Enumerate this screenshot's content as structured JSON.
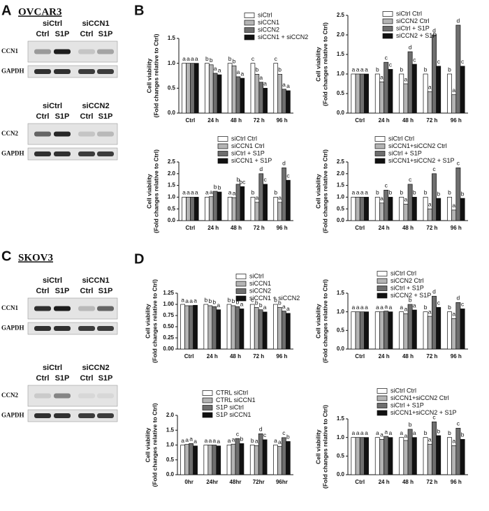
{
  "panel_labels": [
    "A",
    "B",
    "C",
    "D"
  ],
  "cell_lines": [
    "OVCAR3",
    "SKOV3"
  ],
  "blots": [
    {
      "groups": [
        "siCtrl",
        "siCCN1"
      ],
      "lanes": [
        "Ctrl",
        "S1P",
        "Ctrl",
        "S1P"
      ],
      "rows": [
        "CCN1",
        "GAPDH"
      ]
    },
    {
      "groups": [
        "siCtrl",
        "siCCN2"
      ],
      "lanes": [
        "Ctrl",
        "S1P",
        "Ctrl",
        "S1P"
      ],
      "rows": [
        "CCN2",
        "GAPDH"
      ]
    },
    {
      "groups": [
        "siCtrl",
        "siCCN1"
      ],
      "lanes": [
        "Ctrl",
        "S1P",
        "Ctrl",
        "S1P"
      ],
      "rows": [
        "CCN1",
        "GAPDH"
      ]
    },
    {
      "groups": [
        "siCtrl",
        "siCCN2"
      ],
      "lanes": [
        "Ctrl",
        "S1P",
        "Ctrl",
        "S1P"
      ],
      "rows": [
        "CCN2",
        "GAPDH"
      ]
    }
  ],
  "chart_data": [
    {
      "type": "bar",
      "ylabel": [
        "Cell viability",
        "(Fold changes relative to Ctrl)"
      ],
      "categories": [
        "Ctrl",
        "24 h",
        "48 h",
        "72 h",
        "96 h"
      ],
      "ylim": [
        0,
        1.5
      ],
      "yticks": [
        {
          "value": 0,
          "label": "0.0"
        },
        0.5,
        {
          "value": 1,
          "label": "1.0"
        },
        1.5
      ],
      "series": [
        {
          "name": "siCtrl",
          "color": "#ffffff",
          "values": [
            1,
            1,
            1,
            1,
            1
          ],
          "letters": [
            "a",
            "b",
            "b",
            "c",
            "c"
          ]
        },
        {
          "name": "siCCN1",
          "color": "#b4b4b4",
          "values": [
            1,
            0.97,
            0.95,
            0.78,
            0.78
          ],
          "letters": [
            "a",
            "b",
            "b",
            "b",
            "b"
          ]
        },
        {
          "name": "siCCN2",
          "color": "#6e6e6e",
          "values": [
            1,
            0.8,
            0.73,
            0.62,
            0.48
          ],
          "letters": [
            "a",
            "a",
            "a",
            "a",
            "a"
          ]
        },
        {
          "name": "siCCN1 + siCCN2",
          "color": "#111111",
          "values": [
            1,
            0.77,
            0.7,
            0.5,
            0.45
          ],
          "letters": [
            "a",
            "a",
            "a",
            "a",
            "a"
          ]
        }
      ]
    },
    {
      "type": "bar",
      "ylabel": [
        "Cell viability",
        "(Fold changes relative to Ctrl)"
      ],
      "categories": [
        "Ctrl",
        "24 h",
        "48 h",
        "72 h",
        "96 h"
      ],
      "ylim": [
        0,
        2.5
      ],
      "yticks": [
        {
          "value": 0,
          "label": "0.0"
        },
        0.5,
        {
          "value": 1,
          "label": "1.0"
        },
        1.5,
        {
          "value": 2,
          "label": "2.0"
        },
        2.5
      ],
      "series": [
        {
          "name": "siCtrl Ctrl",
          "color": "#ffffff",
          "values": [
            1,
            1,
            1,
            1,
            1
          ],
          "letters": [
            "a",
            "b",
            "b",
            "b",
            "b"
          ]
        },
        {
          "name": "siCCN2 Ctrl",
          "color": "#b4b4b4",
          "values": [
            1,
            0.8,
            0.75,
            0.55,
            0.47
          ],
          "letters": [
            "a",
            "a",
            "a",
            "a",
            "a"
          ]
        },
        {
          "name": "siCtrl + S1P",
          "color": "#6e6e6e",
          "values": [
            1,
            1.3,
            1.57,
            2.0,
            2.25
          ],
          "letters": [
            "a",
            "c",
            "d",
            "d",
            "d"
          ]
        },
        {
          "name": "siCCN2 + S1P",
          "color": "#111111",
          "values": [
            1,
            1.12,
            1.25,
            1.2,
            1.2
          ],
          "letters": [
            "a",
            "c",
            "c",
            "c",
            "c"
          ]
        }
      ]
    },
    {
      "type": "bar",
      "ylabel": [
        "Cell viability",
        "(Fold changes relative to Ctrl)"
      ],
      "categories": [
        "Ctrl",
        "24 h",
        "48 h",
        "72 h",
        "96 h"
      ],
      "ylim": [
        0,
        2.5
      ],
      "yticks": [
        {
          "value": 0,
          "label": "0.0"
        },
        0.5,
        {
          "value": 1,
          "label": "1.0"
        },
        1.5,
        {
          "value": 2,
          "label": "2.0"
        },
        2.5
      ],
      "series": [
        {
          "name": "siCtrl Ctrl",
          "color": "#ffffff",
          "values": [
            1,
            1,
            1,
            1,
            1
          ],
          "letters": [
            "a",
            "a",
            "a",
            "b",
            "b"
          ]
        },
        {
          "name": "siCCN1 Ctrl",
          "color": "#b4b4b4",
          "values": [
            1,
            1.02,
            0.98,
            0.78,
            0.78
          ],
          "letters": [
            "a",
            "a",
            "a",
            "a",
            "a"
          ]
        },
        {
          "name": "siCtrl + S1P",
          "color": "#6e6e6e",
          "values": [
            1,
            1.25,
            1.55,
            2.0,
            2.25
          ],
          "letters": [
            "a",
            "b",
            "b",
            "d",
            "d"
          ]
        },
        {
          "name": "siCCN1 + S1P",
          "color": "#111111",
          "values": [
            1,
            1.22,
            1.45,
            1.55,
            1.72
          ],
          "letters": [
            "a",
            "b",
            "bc",
            "c",
            "c"
          ]
        }
      ]
    },
    {
      "type": "bar",
      "ylabel": [
        "Cell viability",
        "(Fold changes relative to Ctrl)"
      ],
      "categories": [
        "Ctrl",
        "24 h",
        "48 h",
        "72 h",
        "96 h"
      ],
      "ylim": [
        0,
        2.5
      ],
      "yticks": [
        {
          "value": 0,
          "label": "0.0"
        },
        0.5,
        {
          "value": 1,
          "label": "1.0"
        },
        1.5,
        {
          "value": 2,
          "label": "2.0"
        },
        2.5
      ],
      "series": [
        {
          "name": "siCtrl Ctrl",
          "color": "#ffffff",
          "values": [
            1,
            1,
            1,
            1,
            1
          ],
          "letters": [
            "a",
            "b",
            "b",
            "b",
            "b"
          ]
        },
        {
          "name": "siCCN1+siCCN2 Ctrl",
          "color": "#b4b4b4",
          "values": [
            1,
            0.75,
            0.7,
            0.5,
            0.45
          ],
          "letters": [
            "a",
            "a",
            "a",
            "a",
            "a"
          ]
        },
        {
          "name": "siCtrl + S1P",
          "color": "#6e6e6e",
          "values": [
            1,
            1.3,
            1.55,
            2.0,
            2.25
          ],
          "letters": [
            "a",
            "c",
            "c",
            "c",
            "c"
          ]
        },
        {
          "name": "siCCN1+siCCN2 + S1P",
          "color": "#111111",
          "values": [
            1,
            1,
            1,
            0.95,
            0.95
          ],
          "letters": [
            "a",
            "b",
            "b",
            "b",
            "b"
          ]
        }
      ]
    },
    {
      "type": "bar",
      "ylabel": [
        "Cell viability",
        "(Fold changes relative to Ctrl)"
      ],
      "categories": [
        "Ctrl",
        "24 h",
        "48 h",
        "72 h",
        "96 h"
      ],
      "ylim": [
        0,
        1.25
      ],
      "yticks": [
        {
          "value": 0,
          "label": "0.00"
        },
        0.25,
        {
          "value": 0.5,
          "label": "0.50"
        },
        0.75,
        {
          "value": 1,
          "label": "1.00"
        },
        1.25
      ],
      "series": [
        {
          "name": "siCtrl",
          "color": "#ffffff",
          "values": [
            1,
            1,
            1,
            1,
            1
          ],
          "letters": [
            "a",
            "b",
            "b",
            "c",
            "b"
          ]
        },
        {
          "name": "siCCN1",
          "color": "#b4b4b4",
          "values": [
            0.97,
            0.97,
            0.97,
            0.93,
            0.93
          ],
          "letters": [
            "a",
            "b",
            "b",
            "b",
            "b"
          ]
        },
        {
          "name": "siCCN2",
          "color": "#6e6e6e",
          "values": [
            0.97,
            0.95,
            0.95,
            0.88,
            0.85
          ],
          "letters": [
            "a",
            "b",
            "b",
            "b",
            "a"
          ]
        },
        {
          "name": "siCCN1 + siCCN2",
          "color": "#111111",
          "values": [
            0.98,
            0.88,
            0.9,
            0.83,
            0.8
          ],
          "letters": [
            "a",
            "a",
            "a",
            "a",
            "a"
          ]
        }
      ]
    },
    {
      "type": "bar",
      "ylabel": [
        "Cell viability",
        "(Fold changes relative to Ctrl)"
      ],
      "categories": [
        "Ctrl",
        "24 h",
        "48 h",
        "72 h",
        "96 h"
      ],
      "ylim": [
        0,
        1.5
      ],
      "yticks": [
        {
          "value": 0,
          "label": "0.0"
        },
        0.5,
        {
          "value": 1,
          "label": "1.0"
        },
        1.5
      ],
      "series": [
        {
          "name": "siCtrl Ctrl",
          "color": "#ffffff",
          "values": [
            1,
            1,
            1,
            1,
            1
          ],
          "letters": [
            "a",
            "a",
            "a",
            "b",
            "b"
          ]
        },
        {
          "name": "siCCN2 Ctrl",
          "color": "#b4b4b4",
          "values": [
            1,
            1,
            0.95,
            0.88,
            0.82
          ],
          "letters": [
            "a",
            "a",
            "a",
            "a",
            "a"
          ]
        },
        {
          "name": "siCtrl + S1P",
          "color": "#6e6e6e",
          "values": [
            1,
            1.02,
            1.2,
            1.42,
            1.25
          ],
          "letters": [
            "a",
            "a",
            "b",
            "d",
            "d"
          ]
        },
        {
          "name": "siCCN2 + S1P",
          "color": "#111111",
          "values": [
            1,
            1,
            1.05,
            1.12,
            1.08
          ],
          "letters": [
            "a",
            "a",
            "a",
            "c",
            "c"
          ]
        }
      ]
    },
    {
      "type": "bar",
      "ylabel": [
        "Cell viability",
        "(Fold changes relative to Ctrl)"
      ],
      "categories": [
        "0hr",
        "24hr",
        "48hr",
        "72hr",
        "96hr"
      ],
      "ylim": [
        0,
        2
      ],
      "yticks": [
        {
          "value": 0,
          "label": "0.0"
        },
        0.5,
        {
          "value": 1,
          "label": "1.0"
        },
        1.5,
        {
          "value": 2,
          "label": "2.0"
        }
      ],
      "series": [
        {
          "name": "CTRL siCtrl",
          "color": "#ffffff",
          "values": [
            1,
            1,
            1,
            1,
            1
          ],
          "letters": [
            "a",
            "a",
            "a",
            "b",
            "a"
          ]
        },
        {
          "name": "CTRL siCCN1",
          "color": "#b4b4b4",
          "values": [
            1.02,
            1,
            1.03,
            0.98,
            0.95
          ],
          "letters": [
            "a",
            "a",
            "a",
            "a",
            "a"
          ]
        },
        {
          "name": "S1P siCtrl",
          "color": "#6e6e6e",
          "values": [
            1.05,
            1,
            1.22,
            1.38,
            1.25
          ],
          "letters": [
            "a",
            "a",
            "c",
            "d",
            "c"
          ]
        },
        {
          "name": "S1P siCCN1",
          "color": "#111111",
          "values": [
            0.97,
            0.97,
            1.05,
            1.18,
            1.12
          ],
          "letters": [
            "a",
            "a",
            "b",
            "c",
            "b"
          ]
        }
      ]
    },
    {
      "type": "bar",
      "ylabel": [
        "Cell viability",
        "(Fold changes relative to Ctrl)"
      ],
      "categories": [
        "Ctrl",
        "24 h",
        "48 h",
        "72 h",
        "96 h"
      ],
      "ylim": [
        0,
        1.5
      ],
      "yticks": [
        {
          "value": 0,
          "label": "0.0"
        },
        0.5,
        {
          "value": 1,
          "label": "1.0"
        },
        1.5
      ],
      "series": [
        {
          "name": "siCtrl Ctrl",
          "color": "#ffffff",
          "values": [
            1,
            1,
            1,
            1,
            1
          ],
          "letters": [
            "a",
            "a",
            "a",
            "b",
            "b"
          ]
        },
        {
          "name": "siCCN1+siCCN2 Ctrl",
          "color": "#b4b4b4",
          "values": [
            1,
            0.95,
            0.92,
            0.82,
            0.78
          ],
          "letters": [
            "a",
            "a",
            "a",
            "a",
            "a"
          ]
        },
        {
          "name": "siCtrl + S1P",
          "color": "#6e6e6e",
          "values": [
            1,
            1.03,
            1.22,
            1.42,
            1.25
          ],
          "letters": [
            "a",
            "a",
            "b",
            "c",
            "c"
          ]
        },
        {
          "name": "siCCN1+siCCN2 + S1P",
          "color": "#111111",
          "values": [
            1,
            1,
            1,
            1.05,
            0.95
          ],
          "letters": [
            "a",
            "a",
            "a",
            "b",
            "b"
          ]
        }
      ]
    }
  ]
}
